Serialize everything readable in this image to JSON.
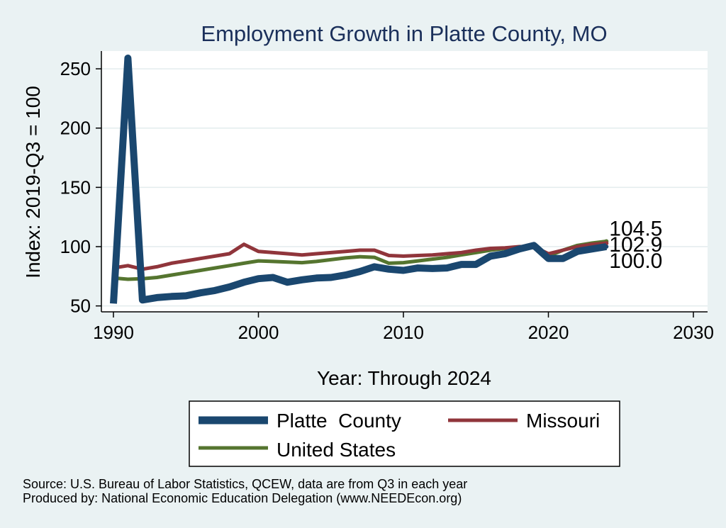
{
  "chart_data": {
    "type": "line",
    "title": "Employment Growth in Platte County, MO",
    "xlabel": "Year: Through 2024",
    "ylabel": "Index: 2019-Q3 = 100",
    "xlim": [
      1990,
      2030
    ],
    "ylim": [
      45,
      265
    ],
    "xticks": [
      1990,
      2000,
      2010,
      2020,
      2030
    ],
    "yticks": [
      50,
      100,
      150,
      200,
      250
    ],
    "grid": "horizontal",
    "legend_position": "bottom",
    "series": [
      {
        "name": "Platte  County",
        "color": "#1a476f",
        "end_label": "100.0",
        "x": [
          1990,
          1991,
          1992,
          1993,
          1994,
          1995,
          1996,
          1997,
          1998,
          1999,
          2000,
          2001,
          2002,
          2003,
          2004,
          2005,
          2006,
          2007,
          2008,
          2009,
          2010,
          2011,
          2012,
          2013,
          2014,
          2015,
          2016,
          2017,
          2018,
          2019,
          2020,
          2021,
          2022,
          2023,
          2024
        ],
        "y": [
          52,
          259,
          55,
          57,
          58,
          58.5,
          61,
          63,
          66,
          70,
          73,
          74,
          70,
          72,
          73.5,
          74,
          76,
          79,
          83,
          81,
          80,
          82,
          81.5,
          82,
          85,
          85,
          92,
          94,
          98,
          101,
          90,
          90,
          96,
          98,
          100
        ]
      },
      {
        "name": "Missouri",
        "color": "#90353b",
        "end_label": "102.9",
        "x": [
          1990,
          1991,
          1992,
          1993,
          1994,
          1995,
          1996,
          1997,
          1998,
          1999,
          2000,
          2001,
          2002,
          2003,
          2004,
          2005,
          2006,
          2007,
          2008,
          2009,
          2010,
          2011,
          2012,
          2013,
          2014,
          2015,
          2016,
          2017,
          2018,
          2019,
          2020,
          2021,
          2022,
          2023,
          2024
        ],
        "y": [
          82,
          84,
          81,
          83,
          86,
          88,
          90,
          92,
          94,
          102,
          96,
          95,
          94,
          93,
          94,
          95,
          96,
          97,
          97,
          92.5,
          92,
          92.5,
          93,
          94,
          95,
          97,
          98.5,
          99,
          100,
          100,
          94,
          97,
          100,
          102,
          102.9
        ]
      },
      {
        "name": "United States",
        "color": "#55752f",
        "end_label": "104.5",
        "x": [
          1990,
          1991,
          1992,
          1993,
          1994,
          1995,
          1996,
          1997,
          1998,
          1999,
          2000,
          2001,
          2002,
          2003,
          2004,
          2005,
          2006,
          2007,
          2008,
          2009,
          2010,
          2011,
          2012,
          2013,
          2014,
          2015,
          2016,
          2017,
          2018,
          2019,
          2020,
          2021,
          2022,
          2023,
          2024
        ],
        "y": [
          73.5,
          72.5,
          73,
          74,
          76,
          78,
          80,
          82,
          84,
          86,
          88,
          87.5,
          87,
          86.5,
          87.5,
          89,
          90.5,
          91.5,
          91,
          86,
          86.5,
          88,
          89.5,
          91,
          93,
          95,
          97,
          98.5,
          99.5,
          100,
          92,
          97,
          101,
          103,
          104.5
        ]
      }
    ],
    "source_note": "Source: U.S. Bureau of Labor Statistics, QCEW, data are from Q3 in each year",
    "producer_note": "Produced by: National Economic Education Delegation (www.NEEDEcon.org)"
  }
}
